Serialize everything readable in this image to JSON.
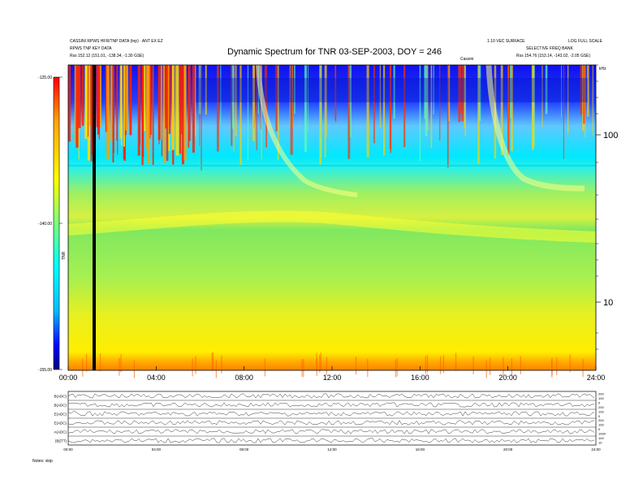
{
  "header": {
    "left_line1": "CASSINI RPWS HFR/TNP DATA (tnp) · ANT EX EZ",
    "left_line2": "RPWS TNP KEY DATA",
    "left_line3": "Rss 152.12 (151.01, -138.34, -1.30 GSE)",
    "right_line1": "1.10 VEC SURFACE",
    "right_line2": "LOG FULL SCALE",
    "right_line3": "SELECTIVE FREQ BANK",
    "right_line4": "Rss 154.76 (153.14, -143.02, -2.05 GSE)",
    "center_small": "Cassini"
  },
  "chart_data": {
    "type": "heatmap",
    "title": "Dynamic Spectrum for TNR 03-SEP-2003, DOY = 246",
    "x_ticks": [
      "00:00",
      "04:00",
      "08:00",
      "12:00",
      "16:00",
      "20:00",
      "24:00"
    ],
    "x_range_hours": [
      0,
      24
    ],
    "y_scale": "log",
    "y_ticks": [
      "100",
      "10"
    ],
    "y_unit": "kHz",
    "colorbar": {
      "ticks": [
        "-125.00",
        "-140.00",
        "-155.00"
      ],
      "range": [
        -155,
        -125
      ],
      "label": "TNR",
      "colors": [
        "#000088",
        "#0000ff",
        "#00bfff",
        "#00ffff",
        "#7fff7f",
        "#ffff00",
        "#ffa500",
        "#ff0000"
      ]
    },
    "bottom_panels": {
      "labels": [
        "B(ADC)",
        "B(ADC)",
        "E(ADC)",
        "E(ADC)",
        "A(ADC)",
        "|B|(TT)"
      ],
      "right_ticks": [
        "200",
        "100",
        "0",
        "200",
        "100",
        "0",
        "200",
        "100",
        "0",
        "1000",
        "100",
        "10"
      ],
      "x_ticks": [
        "00:00",
        "04:00",
        "08:00",
        "12:00",
        "16:00",
        "20:00",
        "24:00"
      ],
      "footer_label": "Notes: skip"
    }
  }
}
